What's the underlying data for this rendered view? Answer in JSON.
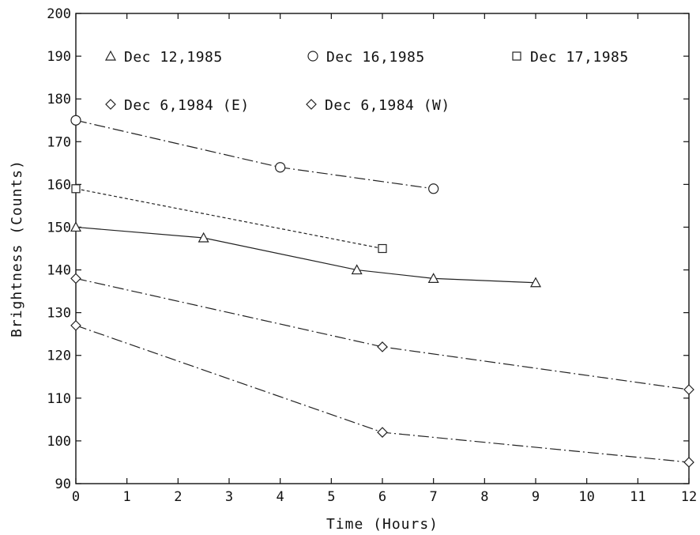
{
  "chart_data": {
    "type": "line",
    "xlabel": "Time (Hours)",
    "ylabel": "Brightness (Counts)",
    "xlim": [
      0,
      12
    ],
    "ylim": [
      90,
      200
    ],
    "xticks": [
      0,
      1,
      2,
      3,
      4,
      5,
      6,
      7,
      8,
      9,
      10,
      11,
      12
    ],
    "yticks": [
      90,
      100,
      110,
      120,
      130,
      140,
      150,
      160,
      170,
      180,
      190,
      200
    ],
    "grid": false,
    "legend_position": "top",
    "series": [
      {
        "name": "Dec 12,1985",
        "marker": "triangle",
        "line_style": "solid",
        "x": [
          0,
          2.5,
          5.5,
          7,
          9
        ],
        "y": [
          150,
          147.5,
          140,
          138,
          137
        ]
      },
      {
        "name": "Dec 16,1985",
        "marker": "circle",
        "line_style": "dash-dot",
        "x": [
          0,
          4,
          7
        ],
        "y": [
          175,
          164,
          159
        ]
      },
      {
        "name": "Dec 17,1985",
        "marker": "square",
        "line_style": "dotted",
        "x": [
          0,
          6
        ],
        "y": [
          159,
          145
        ]
      },
      {
        "name": "Dec 6,1984 (E)",
        "marker": "diamond",
        "line_style": "dash-dot",
        "x": [
          0,
          6,
          12
        ],
        "y": [
          138,
          122,
          112
        ]
      },
      {
        "name": "Dec 6,1984 (W)",
        "marker": "diamond",
        "line_style": "dash-dot",
        "x": [
          0,
          6,
          12
        ],
        "y": [
          127,
          102,
          95
        ]
      }
    ]
  }
}
